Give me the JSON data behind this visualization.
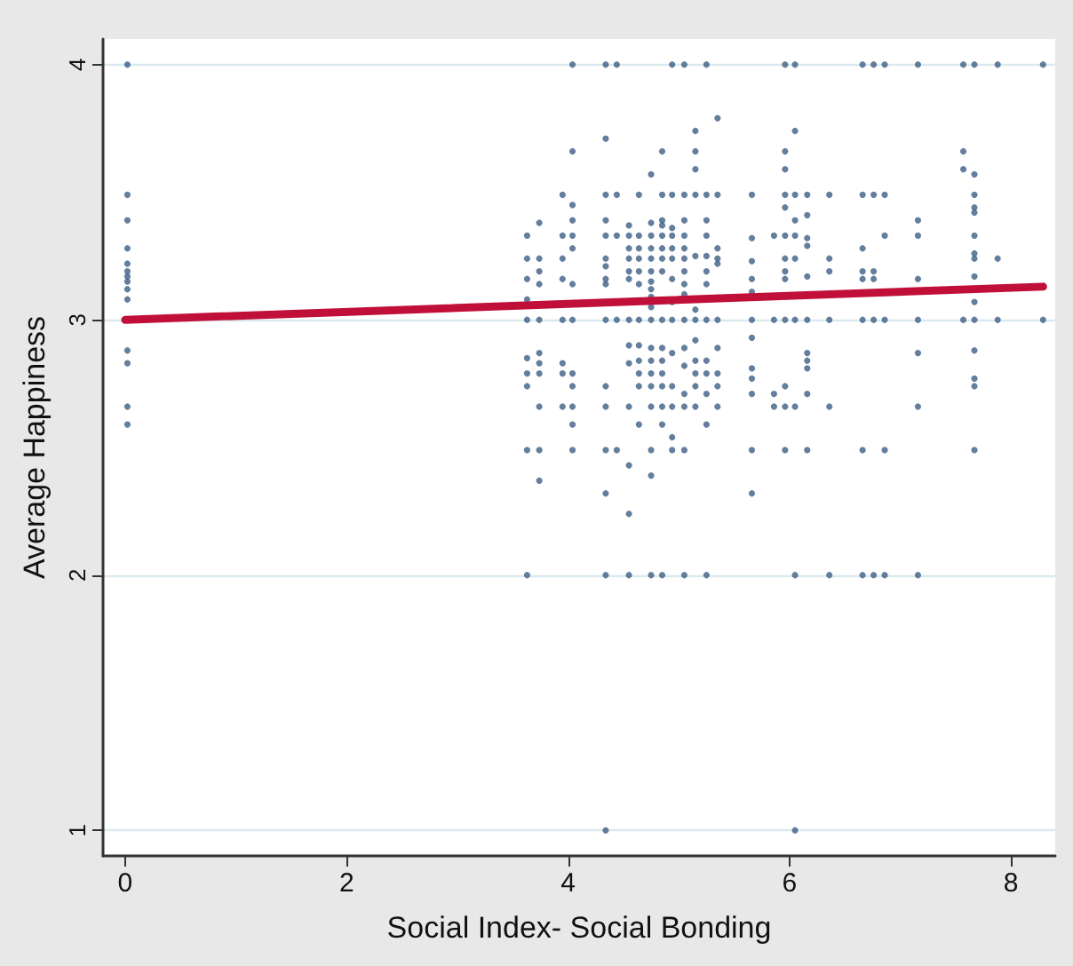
{
  "chart_data": {
    "type": "scatter",
    "xlabel": "Social Index- Social Bonding",
    "ylabel": "Average Happiness",
    "xlim": [
      -0.2,
      8.4
    ],
    "xticks": [
      0,
      2,
      4,
      6,
      8
    ],
    "ylim": [
      0.9,
      4.1
    ],
    "yticks": [
      1,
      2,
      3,
      4
    ],
    "grid": "y",
    "marker": "circle",
    "series": [
      {
        "color": "#3d5f85",
        "x": [
          0.02,
          0.02,
          0.02,
          0.02,
          0.02,
          0.02,
          0.02,
          0.02,
          0.02,
          0.02,
          0.02,
          0.02,
          0.02,
          0.02,
          3.63,
          3.63,
          3.63,
          3.63,
          3.63,
          3.63,
          3.63,
          3.63,
          3.63,
          3.63,
          3.74,
          3.74,
          3.74,
          3.74,
          3.74,
          3.74,
          3.74,
          3.74,
          3.74,
          3.74,
          3.74,
          3.95,
          3.95,
          3.95,
          3.95,
          3.95,
          3.95,
          3.95,
          3.95,
          4.04,
          4.04,
          4.04,
          4.04,
          4.04,
          4.04,
          4.04,
          4.04,
          4.04,
          4.04,
          4.04,
          4.04,
          4.04,
          4.34,
          4.34,
          4.34,
          4.34,
          4.34,
          4.34,
          4.34,
          4.34,
          4.34,
          4.34,
          4.34,
          4.34,
          4.34,
          4.34,
          4.34,
          4.34,
          4.44,
          4.44,
          4.44,
          4.44,
          4.44,
          4.55,
          4.55,
          4.55,
          4.55,
          4.55,
          4.55,
          4.55,
          4.55,
          4.55,
          4.55,
          4.55,
          4.55,
          4.55,
          4.64,
          4.64,
          4.64,
          4.64,
          4.64,
          4.64,
          4.64,
          4.64,
          4.64,
          4.64,
          4.64,
          4.64,
          4.75,
          4.75,
          4.75,
          4.75,
          4.75,
          4.75,
          4.75,
          4.75,
          4.75,
          4.75,
          4.75,
          4.75,
          4.75,
          4.75,
          4.75,
          4.75,
          4.75,
          4.75,
          4.75,
          4.85,
          4.85,
          4.85,
          4.85,
          4.85,
          4.85,
          4.85,
          4.85,
          4.85,
          4.85,
          4.85,
          4.85,
          4.85,
          4.85,
          4.85,
          4.85,
          4.94,
          4.94,
          4.94,
          4.94,
          4.94,
          4.94,
          4.94,
          4.94,
          4.94,
          4.94,
          4.94,
          4.94,
          4.94,
          4.94,
          5.05,
          5.05,
          5.05,
          5.05,
          5.05,
          5.05,
          5.05,
          5.05,
          5.05,
          5.05,
          5.05,
          5.05,
          5.05,
          5.05,
          5.05,
          5.05,
          5.15,
          5.15,
          5.15,
          5.15,
          5.15,
          5.15,
          5.15,
          5.15,
          5.15,
          5.15,
          5.15,
          5.15,
          5.25,
          5.25,
          5.25,
          5.25,
          5.25,
          5.25,
          5.25,
          5.25,
          5.25,
          5.25,
          5.25,
          5.25,
          5.25,
          5.35,
          5.35,
          5.35,
          5.35,
          5.35,
          5.35,
          5.35,
          5.35,
          5.35,
          5.35,
          5.66,
          5.66,
          5.66,
          5.66,
          5.66,
          5.66,
          5.66,
          5.66,
          5.66,
          5.66,
          5.66,
          5.66,
          5.86,
          5.86,
          5.86,
          5.86,
          5.96,
          5.96,
          5.96,
          5.96,
          5.96,
          5.96,
          5.96,
          5.96,
          5.96,
          5.96,
          5.96,
          5.96,
          5.96,
          6.05,
          6.05,
          6.05,
          6.05,
          6.05,
          6.05,
          6.05,
          6.05,
          6.05,
          6.05,
          6.16,
          6.16,
          6.16,
          6.16,
          6.16,
          6.16,
          6.16,
          6.16,
          6.16,
          6.16,
          6.16,
          6.36,
          6.36,
          6.36,
          6.36,
          6.36,
          6.36,
          6.66,
          6.66,
          6.66,
          6.66,
          6.66,
          6.66,
          6.66,
          6.66,
          6.76,
          6.76,
          6.76,
          6.76,
          6.76,
          6.76,
          6.86,
          6.86,
          6.86,
          6.86,
          6.86,
          6.86,
          7.16,
          7.16,
          7.16,
          7.16,
          7.16,
          7.16,
          7.16,
          7.16,
          7.57,
          7.57,
          7.57,
          7.57,
          7.67,
          7.67,
          7.67,
          7.67,
          7.67,
          7.67,
          7.67,
          7.67,
          7.67,
          7.67,
          7.67,
          7.67,
          7.67,
          7.67,
          7.67,
          7.88,
          7.88,
          7.88,
          8.29,
          8.29
        ],
        "values": [
          4,
          3.49,
          3.39,
          3.28,
          3.22,
          3.19,
          3.17,
          3.15,
          3.12,
          3.08,
          2.88,
          2.83,
          2.66,
          2.59,
          3.33,
          3.24,
          3.16,
          3.08,
          3,
          2.85,
          2.79,
          2.74,
          2.49,
          2,
          3.38,
          3.24,
          3.19,
          3.14,
          3,
          2.87,
          2.83,
          2.79,
          2.66,
          2.49,
          2.37,
          3.49,
          3.33,
          3.24,
          3.16,
          3,
          2.83,
          2.79,
          2.66,
          4,
          3.66,
          3.45,
          3.39,
          3.33,
          3.28,
          3.14,
          3,
          2.79,
          2.74,
          2.66,
          2.59,
          2.49,
          4,
          3.71,
          3.49,
          3.39,
          3.33,
          3.24,
          3.21,
          3.16,
          3.14,
          3,
          2.74,
          2.66,
          2.49,
          2.32,
          2,
          1,
          4,
          3.49,
          3.33,
          3,
          2.49,
          3.37,
          3.33,
          3.28,
          3.24,
          3.19,
          3.16,
          3,
          2.9,
          2.83,
          2.66,
          2.43,
          2.24,
          2,
          3.49,
          3.33,
          3.28,
          3.24,
          3.19,
          3.14,
          3,
          2.9,
          2.84,
          2.79,
          2.74,
          2.59,
          3.57,
          3.38,
          3.33,
          3.28,
          3.24,
          3.19,
          3.15,
          3.12,
          3.09,
          3.05,
          3,
          2.89,
          2.84,
          2.79,
          2.74,
          2.66,
          2.49,
          2.39,
          2,
          3.66,
          3.49,
          3.39,
          3.37,
          3.33,
          3.28,
          3.24,
          3.19,
          3,
          2.89,
          2.84,
          2.79,
          2.74,
          2.66,
          2.59,
          2,
          4,
          3.49,
          3.36,
          3.33,
          3.28,
          3.24,
          3.16,
          3.07,
          3,
          2.87,
          2.74,
          2.66,
          2.54,
          2.49,
          4,
          3.49,
          3.39,
          3.33,
          3.28,
          3.24,
          3.19,
          3.14,
          3.1,
          3,
          2.89,
          2.82,
          2.71,
          2.66,
          2.49,
          2,
          3.74,
          3.66,
          3.59,
          3.49,
          3.25,
          3.04,
          3,
          2.92,
          2.84,
          2.79,
          2.74,
          2.66,
          4,
          3.49,
          3.39,
          3.33,
          3.25,
          3.19,
          3.14,
          3,
          2.84,
          2.79,
          2.71,
          2.59,
          2,
          3.79,
          3.49,
          3.28,
          3.24,
          3.22,
          3,
          2.89,
          2.79,
          2.74,
          2.66,
          3.49,
          3.32,
          3.23,
          3.16,
          3.11,
          3,
          2.93,
          2.81,
          2.77,
          2.71,
          2.49,
          2.32,
          3.33,
          3,
          2.71,
          2.66,
          4,
          3.66,
          3.59,
          3.49,
          3.44,
          3.33,
          3.24,
          3.19,
          3.16,
          3,
          2.74,
          2.66,
          2.49,
          4,
          3.74,
          3.49,
          3.39,
          3.33,
          3.24,
          3,
          2.66,
          2,
          1,
          3.49,
          3.41,
          3.32,
          3.29,
          3.17,
          3,
          2.87,
          2.84,
          2.81,
          2.71,
          2.49,
          3.49,
          3.24,
          3.19,
          3,
          2.66,
          2,
          4,
          3.49,
          3.28,
          3.19,
          3.16,
          3,
          2.49,
          2,
          4,
          3.49,
          3.19,
          3.16,
          3,
          2,
          4,
          3.49,
          3.33,
          3,
          2.49,
          2,
          4,
          3.39,
          3.33,
          3.16,
          3,
          2.87,
          2.66,
          2,
          4,
          3.66,
          3.59,
          3,
          4,
          3.57,
          3.49,
          3.44,
          3.42,
          3.33,
          3.26,
          3.24,
          3.17,
          3.07,
          3,
          2.88,
          2.77,
          2.74,
          2.49,
          4,
          3.24,
          3,
          4,
          3
        ]
      },
      {
        "type": "line",
        "color": "#c0103a",
        "marker": "none",
        "x": [
          0,
          8.29
        ],
        "values": [
          3.0,
          3.13
        ]
      }
    ]
  }
}
